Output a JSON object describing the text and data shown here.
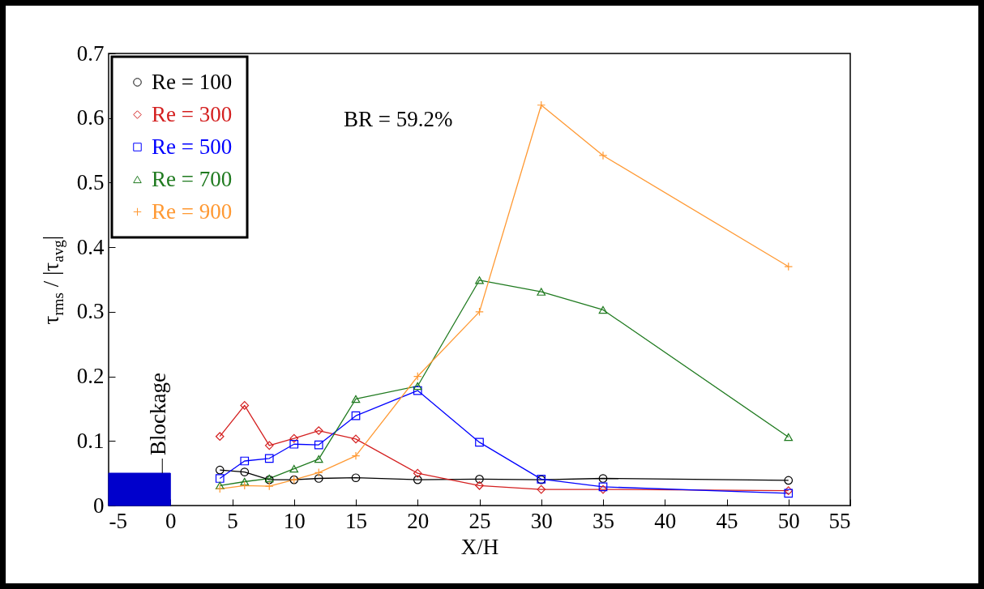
{
  "chart_data": {
    "type": "line",
    "xlabel": "X/H",
    "ylabel": "τ$_{rms}$ / |τ$_{avg}$|",
    "x": [
      4,
      6,
      8,
      10,
      12,
      15,
      20,
      25,
      30,
      35,
      50
    ],
    "series": [
      {
        "name": "Re = 100",
        "color": "#000000",
        "marker": "circle",
        "values": [
          0.055,
          0.052,
          0.04,
          0.04,
          0.042,
          0.043,
          0.04,
          0.041,
          0.04,
          0.042,
          0.039
        ]
      },
      {
        "name": "Re = 300",
        "color": "#d42020",
        "marker": "diamond",
        "values": [
          0.107,
          0.155,
          0.093,
          0.104,
          0.116,
          0.103,
          0.05,
          0.031,
          0.025,
          0.025,
          0.023
        ]
      },
      {
        "name": "Re = 500",
        "color": "#0000ff",
        "marker": "square",
        "values": [
          0.042,
          0.069,
          0.073,
          0.095,
          0.094,
          0.139,
          0.178,
          0.098,
          0.041,
          0.029,
          0.019
        ]
      },
      {
        "name": "Re = 700",
        "color": "#1f7a1f",
        "marker": "triangle",
        "values": [
          0.031,
          0.037,
          0.042,
          0.057,
          0.072,
          0.165,
          0.185,
          0.349,
          0.331,
          0.303,
          0.106
        ]
      },
      {
        "name": "Re = 900",
        "color": "#ff9933",
        "marker": "cross",
        "values": [
          0.026,
          0.031,
          0.03,
          0.04,
          0.051,
          0.077,
          0.2,
          0.3,
          0.62,
          0.542,
          0.37
        ]
      }
    ],
    "xlim": [
      -5,
      55
    ],
    "xticks": [
      -5,
      0,
      5,
      10,
      15,
      20,
      25,
      30,
      35,
      40,
      45,
      50,
      55
    ],
    "ylim": [
      0,
      0.7
    ],
    "yticks": [
      0,
      0.1,
      0.2,
      0.3,
      0.4,
      0.5,
      0.6,
      0.7
    ],
    "bands": [
      {
        "axis": "x",
        "from": -5,
        "to": 0,
        "label": "Blockage",
        "color": "#0000cc"
      }
    ],
    "annotations": [
      "BR = 59.2%"
    ],
    "legend": "top left",
    "grid": false,
    "line_style": "solid"
  }
}
